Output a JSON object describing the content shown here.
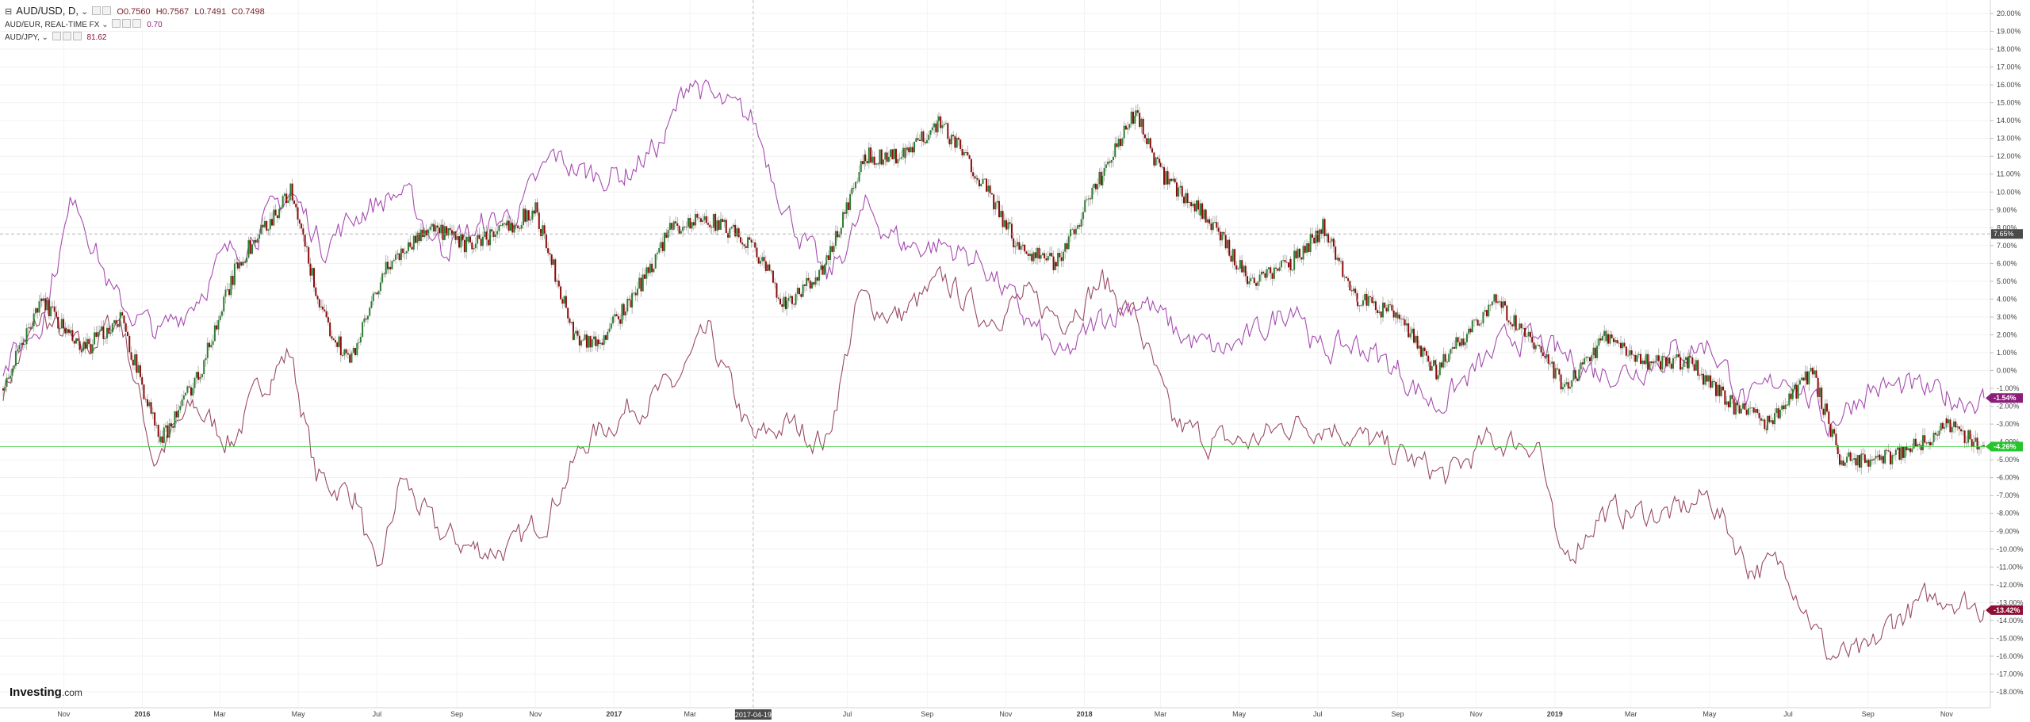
{
  "legend": {
    "main": {
      "symbol": "AUD/USD, D,",
      "open": "O0.7560",
      "high": "H0.7567",
      "low": "L0.7491",
      "close": "C0.7498"
    },
    "audeur": {
      "symbol": "AUD/EUR, REAL-TIME FX",
      "value": "0.70"
    },
    "audjpy": {
      "symbol": "AUD/JPY,",
      "value": "81.62"
    }
  },
  "crosshair_label": "2017-04-19",
  "crosshair_price": "7.65%",
  "logo": {
    "main": "Investing",
    "suffix": ".com"
  },
  "colors": {
    "audusd_up": "#2e7d32",
    "audusd_down": "#8b0a0a",
    "audeur": "#a64bb0",
    "audjpy": "#9a4b63",
    "badge_audeur": "#8a1f7a",
    "badge_audusd": "#27c42f",
    "badge_audjpy": "#8e0f33",
    "last_price_line": "#3dcc3d"
  },
  "chart_data": {
    "type": "line",
    "title": "",
    "ylabel": "",
    "y_unit": "%",
    "ylim": [
      -18,
      20
    ],
    "y_ticks": [
      "20.00%",
      "19.00%",
      "18.00%",
      "17.00%",
      "16.00%",
      "15.00%",
      "14.00%",
      "13.00%",
      "12.00%",
      "11.00%",
      "10.00%",
      "9.00%",
      "8.00%",
      "7.00%",
      "6.00%",
      "5.00%",
      "4.00%",
      "3.00%",
      "2.00%",
      "1.00%",
      "0.00%",
      "-1.00%",
      "-2.00%",
      "-3.00%",
      "-4.00%",
      "-5.00%",
      "-6.00%",
      "-7.00%",
      "-8.00%",
      "-9.00%",
      "-10.00%",
      "-11.00%",
      "-12.00%",
      "-13.00%",
      "-14.00%",
      "-15.00%",
      "-16.00%",
      "-17.00%",
      "-18.00%"
    ],
    "x_ticks": [
      "Nov",
      "2016",
      "Mar",
      "May",
      "Jul",
      "Sep",
      "Nov",
      "2017",
      "Mar",
      "Jul",
      "Sep",
      "Nov",
      "2018",
      "Mar",
      "May",
      "Jul",
      "Sep",
      "Nov",
      "2019",
      "Mar",
      "May",
      "Jul",
      "Sep",
      "Nov"
    ],
    "x_tick_dates": [
      "2015-11-01",
      "2016-01-01",
      "2016-03-01",
      "2016-05-01",
      "2016-07-01",
      "2016-09-01",
      "2016-11-01",
      "2017-01-01",
      "2017-03-01",
      "2017-07-01",
      "2017-09-01",
      "2017-11-01",
      "2018-01-01",
      "2018-03-01",
      "2018-05-01",
      "2018-07-01",
      "2018-09-01",
      "2018-11-01",
      "2019-01-01",
      "2019-03-01",
      "2019-05-01",
      "2019-07-01",
      "2019-09-01",
      "2019-11-01"
    ],
    "x_range": [
      "2015-09-15",
      "2019-11-30"
    ],
    "series": [
      {
        "name": "AUD/USD",
        "style": "candles",
        "points": [
          [
            "2015-09-15",
            -1
          ],
          [
            "2015-10-15",
            4
          ],
          [
            "2015-11-15",
            1
          ],
          [
            "2015-12-15",
            3
          ],
          [
            "2016-01-15",
            -4
          ],
          [
            "2016-02-15",
            0
          ],
          [
            "2016-03-15",
            6
          ],
          [
            "2016-04-25",
            10
          ],
          [
            "2016-05-20",
            3
          ],
          [
            "2016-06-10",
            0.5
          ],
          [
            "2016-07-10",
            6
          ],
          [
            "2016-08-10",
            8
          ],
          [
            "2016-09-10",
            7
          ],
          [
            "2016-10-10",
            8
          ],
          [
            "2016-11-01",
            9
          ],
          [
            "2016-12-01",
            2
          ],
          [
            "2016-12-20",
            1.5
          ],
          [
            "2017-01-15",
            4
          ],
          [
            "2017-02-15",
            8
          ],
          [
            "2017-03-15",
            8.5
          ],
          [
            "2017-04-19",
            7
          ],
          [
            "2017-05-15",
            3.5
          ],
          [
            "2017-06-15",
            6
          ],
          [
            "2017-07-15",
            12
          ],
          [
            "2017-08-15",
            12
          ],
          [
            "2017-09-10",
            14
          ],
          [
            "2017-10-10",
            11
          ],
          [
            "2017-11-10",
            7
          ],
          [
            "2017-12-10",
            6
          ],
          [
            "2018-01-15",
            11
          ],
          [
            "2018-02-10",
            14.5
          ],
          [
            "2018-03-01",
            11
          ],
          [
            "2018-04-01",
            9
          ],
          [
            "2018-05-10",
            5
          ],
          [
            "2018-06-10",
            6
          ],
          [
            "2018-07-05",
            8
          ],
          [
            "2018-08-01",
            4
          ],
          [
            "2018-09-01",
            3
          ],
          [
            "2018-10-01",
            0
          ],
          [
            "2018-11-15",
            4
          ],
          [
            "2018-12-20",
            1
          ],
          [
            "2019-01-10",
            -1
          ],
          [
            "2019-02-10",
            2
          ],
          [
            "2019-03-10",
            0.5
          ],
          [
            "2019-04-15",
            0.5
          ],
          [
            "2019-05-20",
            -2
          ],
          [
            "2019-06-15",
            -3
          ],
          [
            "2019-07-20",
            0
          ],
          [
            "2019-08-10",
            -5
          ],
          [
            "2019-09-10",
            -5
          ],
          [
            "2019-10-15",
            -4
          ],
          [
            "2019-11-01",
            -3
          ],
          [
            "2019-11-30",
            -4.26
          ]
        ]
      },
      {
        "name": "AUD/EUR",
        "style": "line",
        "points": [
          [
            "2015-09-15",
            0
          ],
          [
            "2015-10-15",
            3
          ],
          [
            "2015-11-10",
            10
          ],
          [
            "2015-12-10",
            4
          ],
          [
            "2016-01-15",
            2
          ],
          [
            "2016-02-10",
            4
          ],
          [
            "2016-03-01",
            6
          ],
          [
            "2016-04-01",
            8
          ],
          [
            "2016-04-25",
            10
          ],
          [
            "2016-05-20",
            7
          ],
          [
            "2016-06-20",
            9
          ],
          [
            "2016-07-20",
            10
          ],
          [
            "2016-08-20",
            7
          ],
          [
            "2016-09-20",
            8
          ],
          [
            "2016-10-20",
            9
          ],
          [
            "2016-11-15",
            12
          ],
          [
            "2016-12-10",
            11
          ],
          [
            "2017-01-10",
            11
          ],
          [
            "2017-02-10",
            13
          ],
          [
            "2017-03-01",
            16.5
          ],
          [
            "2017-03-20",
            15
          ],
          [
            "2017-04-19",
            14
          ],
          [
            "2017-05-15",
            9
          ],
          [
            "2017-06-15",
            5
          ],
          [
            "2017-07-15",
            9
          ],
          [
            "2017-08-15",
            7
          ],
          [
            "2017-09-15",
            7
          ],
          [
            "2017-10-15",
            6
          ],
          [
            "2017-11-15",
            3
          ],
          [
            "2017-12-15",
            0.5
          ],
          [
            "2018-01-15",
            3
          ],
          [
            "2018-02-15",
            4
          ],
          [
            "2018-03-15",
            2
          ],
          [
            "2018-04-15",
            1
          ],
          [
            "2018-05-15",
            2
          ],
          [
            "2018-06-15",
            4
          ],
          [
            "2018-07-01",
            1
          ],
          [
            "2018-08-01",
            1.5
          ],
          [
            "2018-09-01",
            0
          ],
          [
            "2018-10-01",
            -2
          ],
          [
            "2018-11-01",
            0
          ],
          [
            "2018-12-01",
            2
          ],
          [
            "2019-01-01",
            1
          ],
          [
            "2019-02-01",
            0
          ],
          [
            "2019-03-01",
            0
          ],
          [
            "2019-04-01",
            1
          ],
          [
            "2019-05-01",
            1.5
          ],
          [
            "2019-06-01",
            -2
          ],
          [
            "2019-07-01",
            0
          ],
          [
            "2019-08-01",
            -3
          ],
          [
            "2019-09-01",
            -1
          ],
          [
            "2019-10-01",
            -1
          ],
          [
            "2019-11-01",
            -1.5
          ],
          [
            "2019-11-30",
            -1.54
          ]
        ]
      },
      {
        "name": "AUD/JPY",
        "style": "line",
        "points": [
          [
            "2015-09-15",
            -1
          ],
          [
            "2015-10-15",
            3
          ],
          [
            "2015-11-15",
            1
          ],
          [
            "2015-12-15",
            3
          ],
          [
            "2016-01-10",
            -5
          ],
          [
            "2016-02-10",
            -2
          ],
          [
            "2016-03-10",
            -4
          ],
          [
            "2016-04-10",
            0
          ],
          [
            "2016-04-25",
            1
          ],
          [
            "2016-05-15",
            -6
          ],
          [
            "2016-06-15",
            -7
          ],
          [
            "2016-07-01",
            -12
          ],
          [
            "2016-07-20",
            -6
          ],
          [
            "2016-08-15",
            -9
          ],
          [
            "2016-09-15",
            -10
          ],
          [
            "2016-10-15",
            -10
          ],
          [
            "2016-11-10",
            -8
          ],
          [
            "2016-12-10",
            -4
          ],
          [
            "2017-01-15",
            -2
          ],
          [
            "2017-02-15",
            -1
          ],
          [
            "2017-03-15",
            2
          ],
          [
            "2017-04-19",
            -4
          ],
          [
            "2017-05-15",
            -3
          ],
          [
            "2017-06-15",
            -4
          ],
          [
            "2017-07-10",
            4
          ],
          [
            "2017-08-10",
            3
          ],
          [
            "2017-09-15",
            5
          ],
          [
            "2017-10-15",
            3
          ],
          [
            "2017-11-15",
            4
          ],
          [
            "2017-12-15",
            3
          ],
          [
            "2018-01-15",
            5
          ],
          [
            "2018-02-10",
            3
          ],
          [
            "2018-03-10",
            -3
          ],
          [
            "2018-04-10",
            -4
          ],
          [
            "2018-05-10",
            -4
          ],
          [
            "2018-06-10",
            -3
          ],
          [
            "2018-07-10",
            -3
          ],
          [
            "2018-08-10",
            -4
          ],
          [
            "2018-09-10",
            -5
          ],
          [
            "2018-10-10",
            -6
          ],
          [
            "2018-11-10",
            -4
          ],
          [
            "2018-12-20",
            -4
          ],
          [
            "2019-01-05",
            -11
          ],
          [
            "2019-02-05",
            -8
          ],
          [
            "2019-03-05",
            -8
          ],
          [
            "2019-04-05",
            -8
          ],
          [
            "2019-05-01",
            -7
          ],
          [
            "2019-06-01",
            -11
          ],
          [
            "2019-07-01",
            -11
          ],
          [
            "2019-08-01",
            -16
          ],
          [
            "2019-09-01",
            -16
          ],
          [
            "2019-09-20",
            -14
          ],
          [
            "2019-10-15",
            -13
          ],
          [
            "2019-11-01",
            -12.5
          ],
          [
            "2019-11-30",
            -13.42
          ]
        ]
      }
    ],
    "badges": [
      {
        "text": "-1.54%",
        "value": -1.54,
        "series": "AUD/EUR"
      },
      {
        "text": "-4.26%",
        "value": -4.26,
        "series": "AUD/USD"
      },
      {
        "text": "-13.42%",
        "value": -13.42,
        "series": "AUD/JPY"
      }
    ],
    "crosshair": {
      "x": "2017-04-19",
      "y": 7.65
    },
    "grid": true,
    "legend_position": "top-left"
  }
}
